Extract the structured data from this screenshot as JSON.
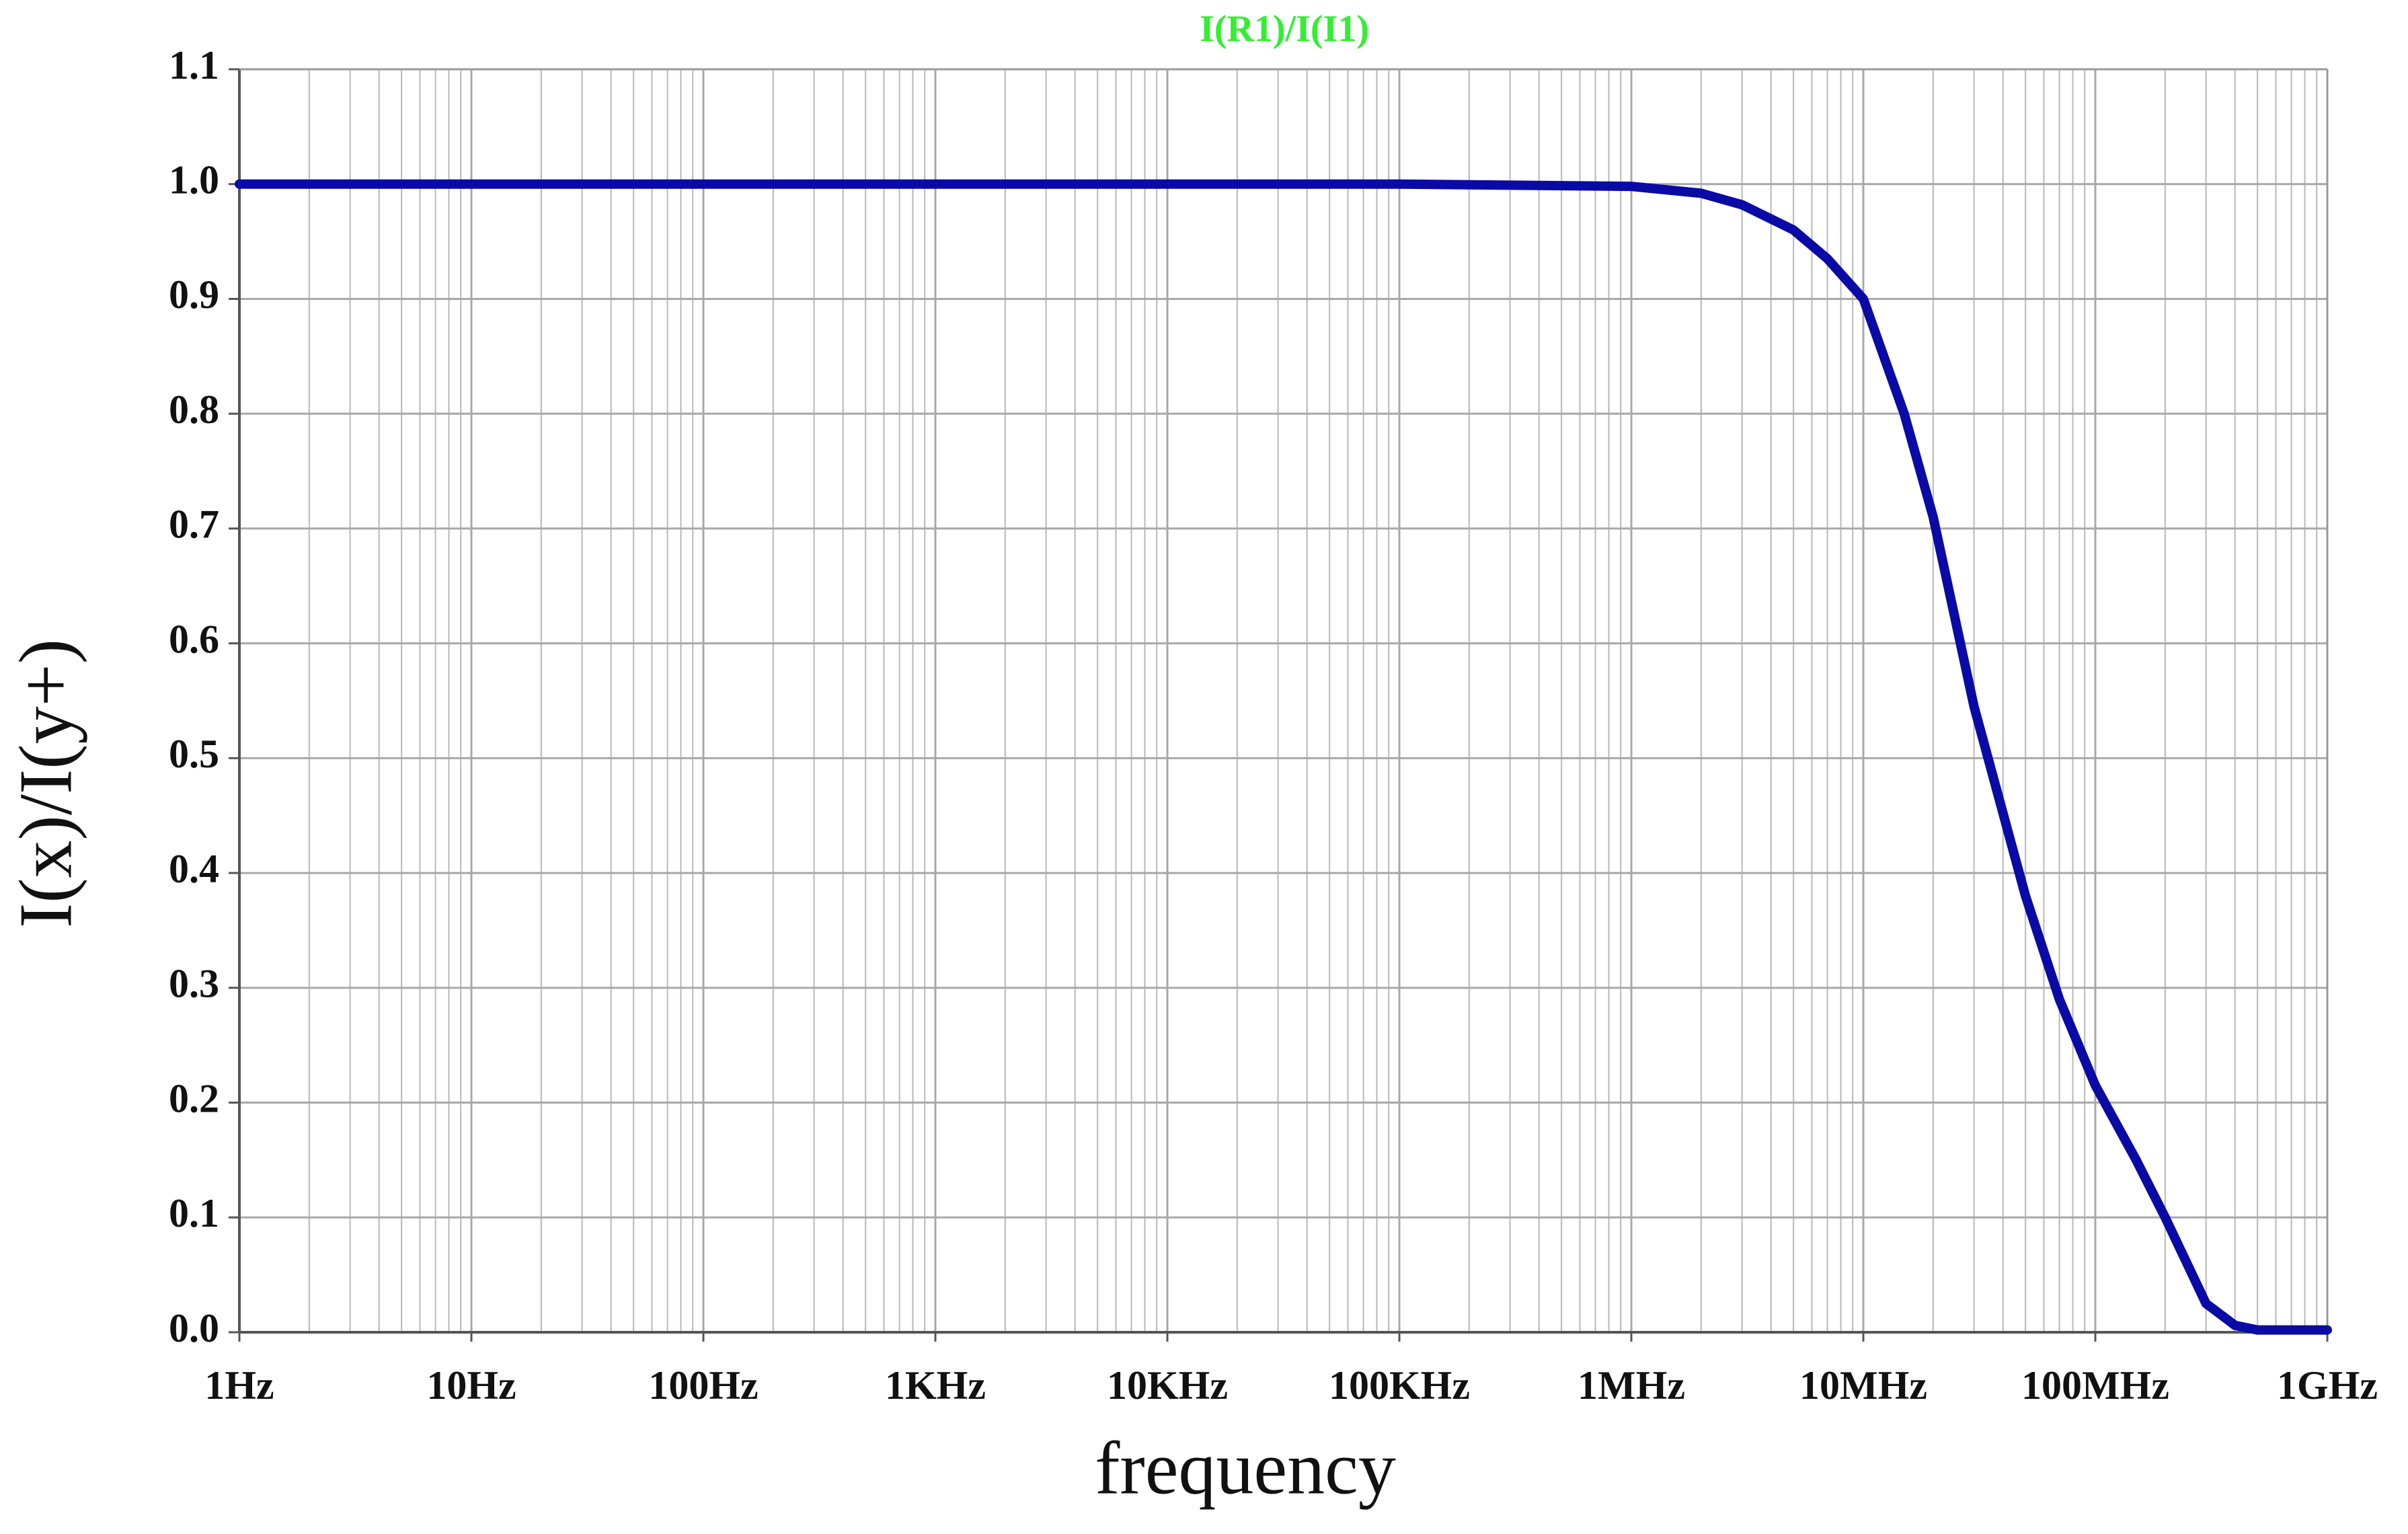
{
  "chart_data": {
    "type": "line",
    "title": "I(R1)/I(I1)",
    "x_label": "frequency",
    "y_label": "I(x)/I(y+)",
    "log_x": true,
    "grid": true,
    "color": "#0a0aa6",
    "x": [
      1,
      10,
      100,
      1000,
      10000,
      100000,
      1000000,
      2000000,
      3000000,
      5000000,
      7000000,
      10000000,
      15000000,
      20000000,
      30000000,
      50000000,
      70000000,
      100000000,
      150000000,
      200000000,
      300000000,
      400000000,
      500000000,
      1000000000
    ],
    "values": [
      1.0,
      1.0,
      1.0,
      1.0,
      1.0,
      1.0,
      0.998,
      0.992,
      0.982,
      0.96,
      0.935,
      0.9,
      0.8,
      0.71,
      0.545,
      0.38,
      0.29,
      0.215,
      0.15,
      0.1,
      0.025,
      0.006,
      0.002,
      0.002
    ],
    "xlim": [
      1,
      1000000000
    ],
    "xticks": [
      {
        "value": 1,
        "label": "1Hz"
      },
      {
        "value": 10,
        "label": "10Hz"
      },
      {
        "value": 100,
        "label": "100Hz"
      },
      {
        "value": 1000,
        "label": "1KHz"
      },
      {
        "value": 10000,
        "label": "10KHz"
      },
      {
        "value": 100000,
        "label": "100KHz"
      },
      {
        "value": 1000000,
        "label": "1MHz"
      },
      {
        "value": 10000000,
        "label": "10MHz"
      },
      {
        "value": 100000000,
        "label": "100MHz"
      },
      {
        "value": 1000000000,
        "label": "1GHz"
      }
    ],
    "ylim": [
      0,
      1.1
    ],
    "yticks": [
      {
        "value": 0,
        "label": "0.0"
      },
      0.1,
      0.2,
      0.3,
      0.4,
      0.5,
      0.6,
      0.7,
      0.8,
      0.9,
      {
        "value": 1,
        "label": "1.0"
      },
      1.1
    ]
  }
}
